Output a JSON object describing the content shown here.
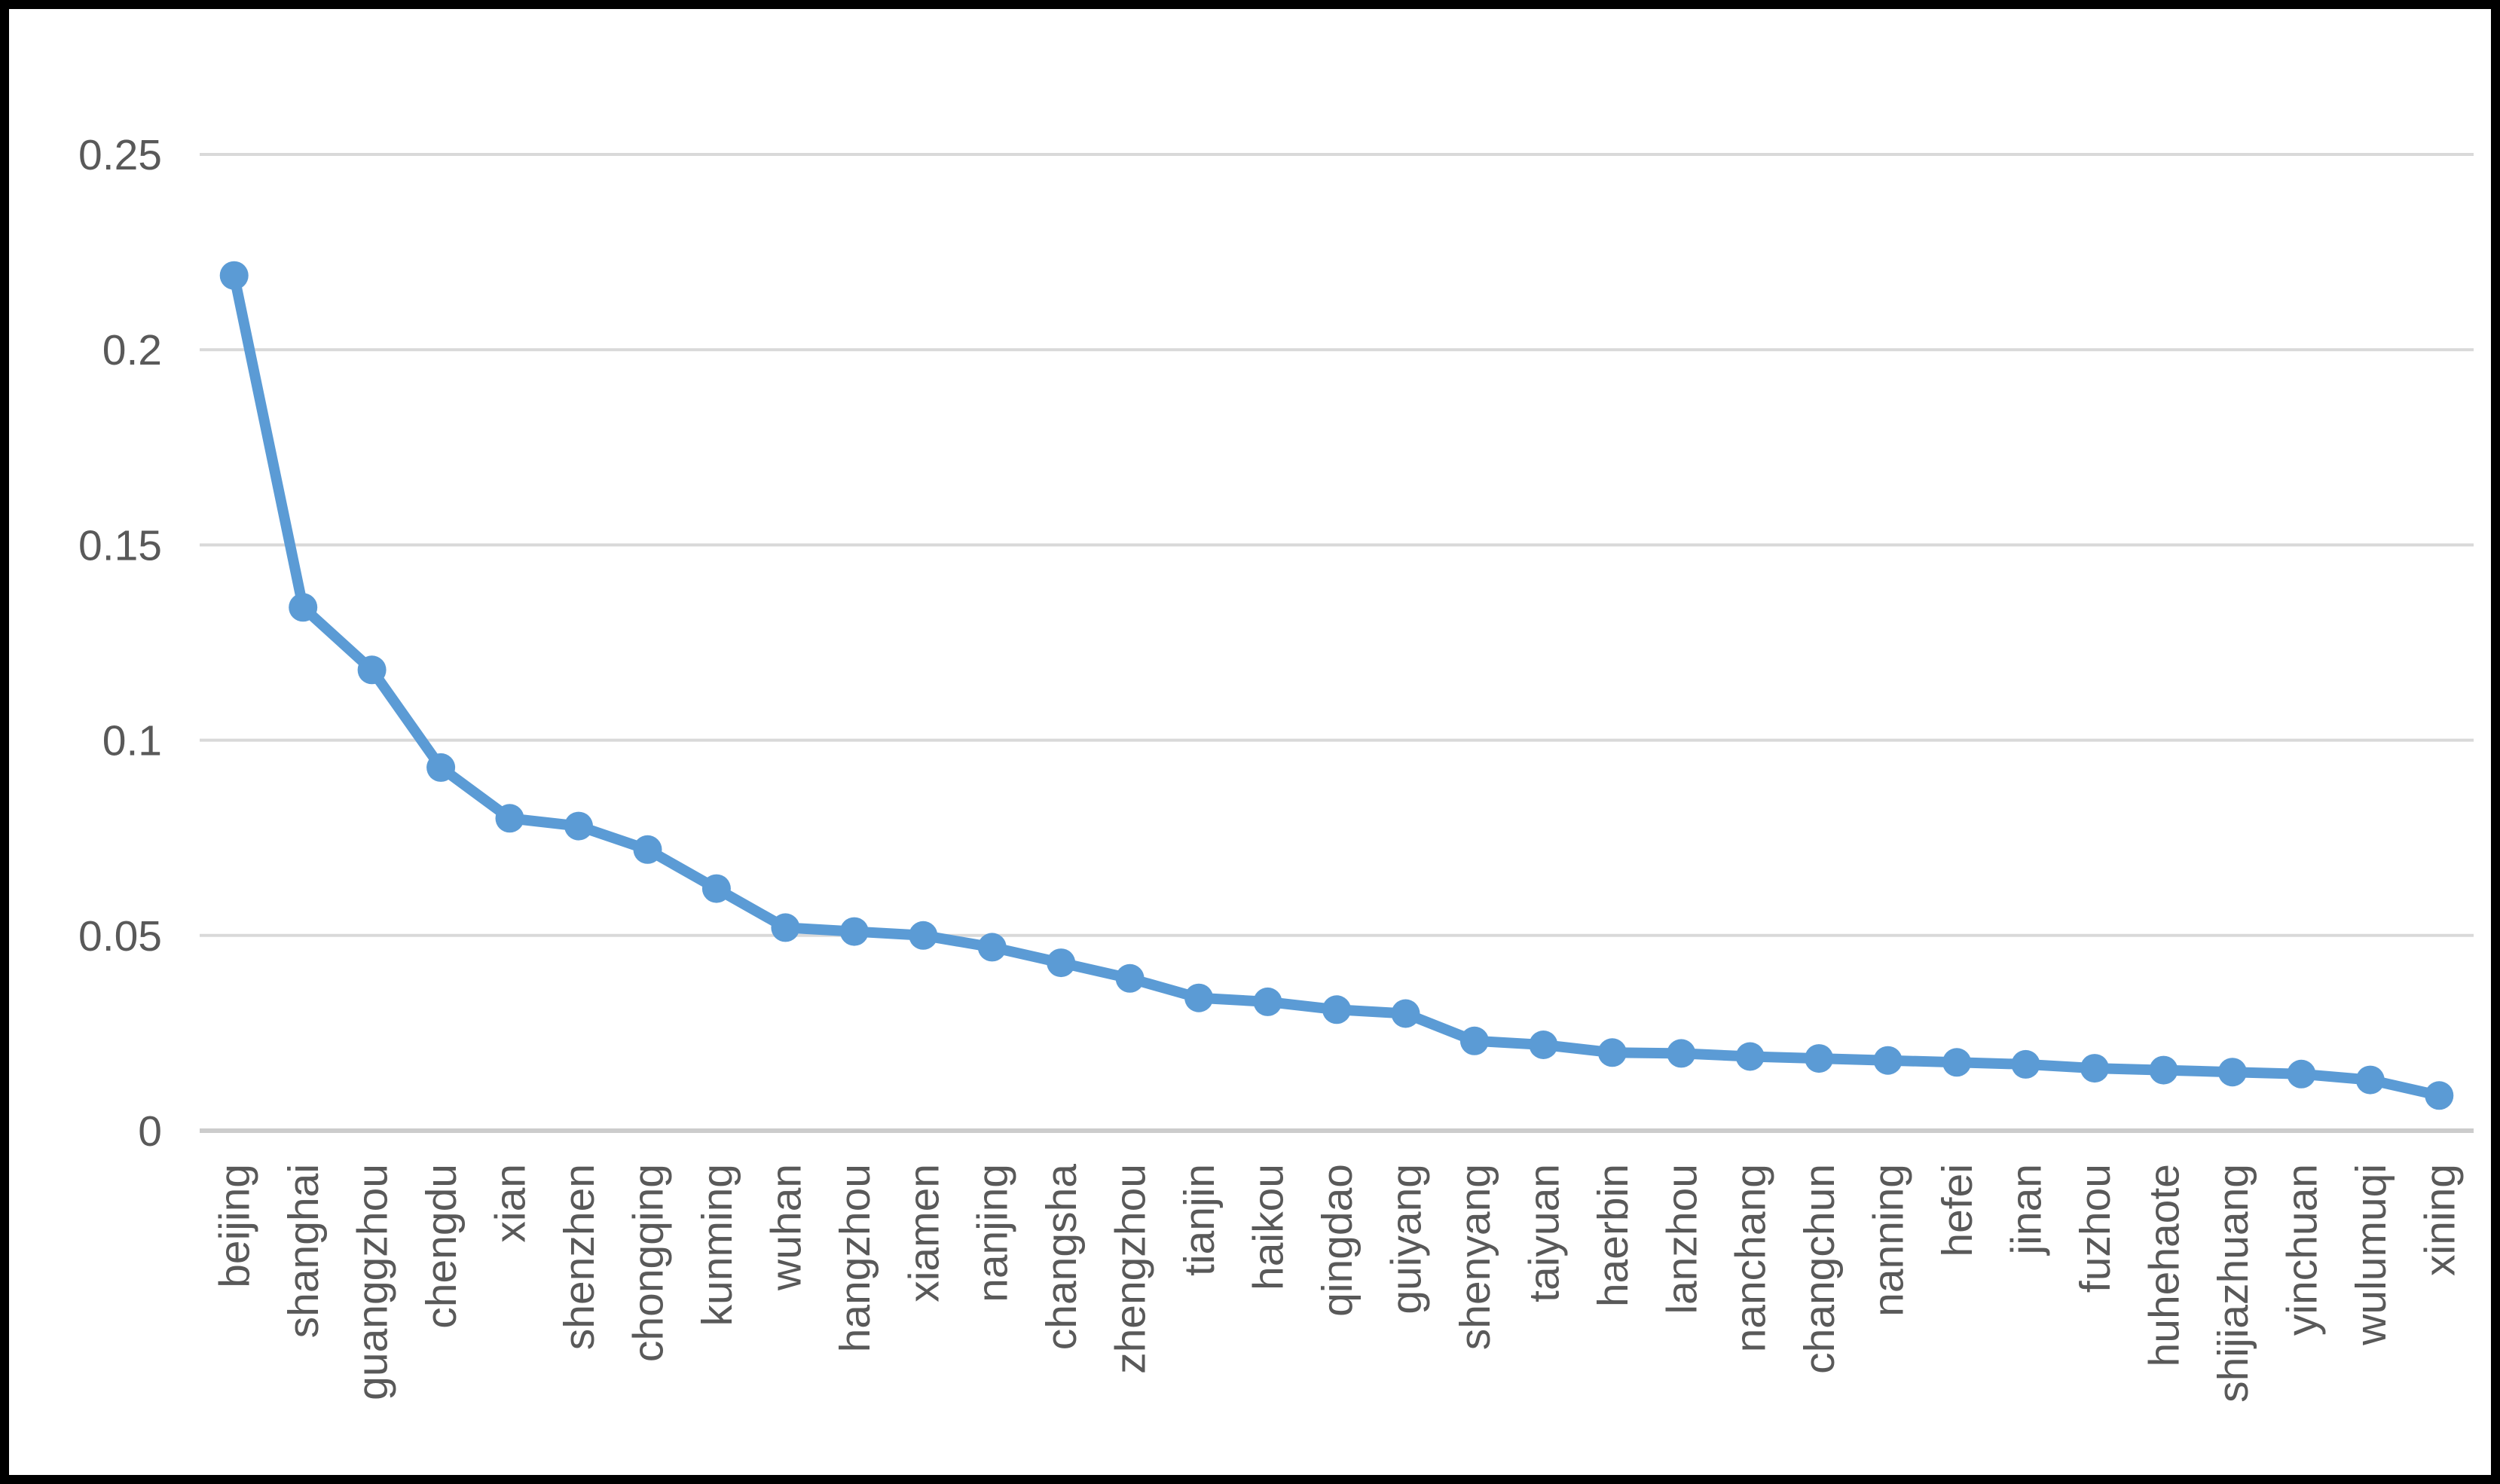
{
  "chart_data": {
    "type": "line",
    "title": "",
    "xlabel": "",
    "ylabel": "",
    "categories": [
      "beijing",
      "shanghai",
      "guanggzhou",
      "chengdu",
      "xian",
      "shenzhen",
      "chongqing",
      "kunming",
      "wuhan",
      "hangzhou",
      "xiamen",
      "nanjing",
      "changsha",
      "zhengzhou",
      "tianjin",
      "haikou",
      "qingdao",
      "guiyang",
      "shenyang",
      "taiyuan",
      "haerbin",
      "lanzhou",
      "nanchang",
      "changchun",
      "nanning",
      "hefei",
      "jinan",
      "fuzhou",
      "huhehaote",
      "shijiazhuang",
      "yinchuan",
      "wulumuqi",
      "xining"
    ],
    "series": [
      {
        "name": "",
        "values": [
          0.219,
          0.134,
          0.118,
          0.093,
          0.08,
          0.078,
          0.072,
          0.062,
          0.052,
          0.051,
          0.05,
          0.047,
          0.043,
          0.039,
          0.034,
          0.033,
          0.031,
          0.03,
          0.023,
          0.022,
          0.02,
          0.0198,
          0.019,
          0.0185,
          0.018,
          0.0175,
          0.017,
          0.016,
          0.0155,
          0.015,
          0.0145,
          0.013,
          0.009
        ]
      }
    ],
    "ylim": [
      0,
      0.25
    ],
    "yticks": [
      0,
      0.05,
      0.1,
      0.15,
      0.2,
      0.25
    ],
    "ytick_labels": [
      "0",
      "0.05",
      "0.1",
      "0.15",
      "0.2",
      "0.25"
    ],
    "grid": true,
    "legend_position": "none",
    "x_labels_rotation_degrees": 90
  },
  "style": {
    "line_color": "#5b9bd5",
    "marker_color": "#5b9bd5",
    "gridline_color": "#d9d9d9",
    "baseline_color": "#cccccc",
    "tick_label_color": "#595959",
    "background_color": "#ffffff",
    "border_color": "#000000"
  }
}
